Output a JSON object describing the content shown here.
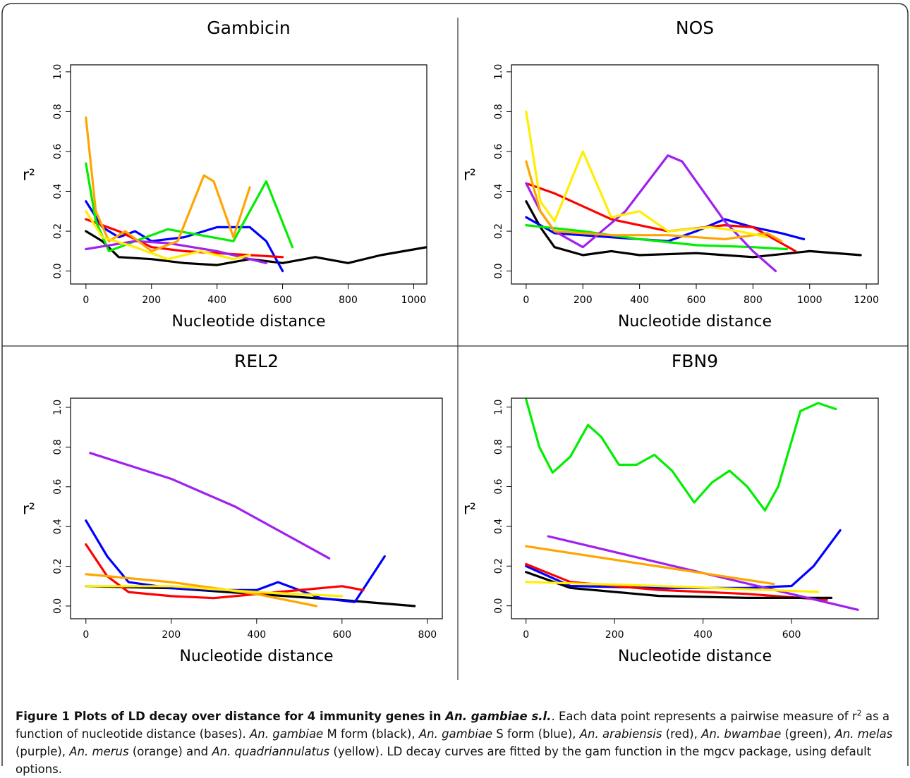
{
  "chart_data": [
    {
      "type": "line",
      "title": "Gambicin",
      "x_label": "Nucleotide distance",
      "y_label": "r²",
      "xlim": [
        -47,
        1040
      ],
      "ylim": [
        -0.065,
        1.035
      ],
      "xticks": [
        0,
        200,
        400,
        600,
        800,
        1000
      ],
      "yticks": [
        {
          "value": 0,
          "label": "0.0"
        },
        {
          "value": 0.2,
          "label": "0.2"
        },
        {
          "value": 0.4,
          "label": "0.4"
        },
        {
          "value": 0.6,
          "label": "0.6"
        },
        {
          "value": 0.8,
          "label": "0.8"
        },
        {
          "value": 1,
          "label": "1.0"
        }
      ],
      "series": [
        {
          "color": "#000000",
          "x": [
            0,
            50,
            100,
            200,
            300,
            400,
            500,
            600,
            700,
            800,
            900,
            1040
          ],
          "values": [
            0.2,
            0.15,
            0.07,
            0.06,
            0.04,
            0.03,
            0.06,
            0.04,
            0.07,
            0.04,
            0.08,
            0.12
          ]
        },
        {
          "color": "#0000ff",
          "x": [
            0,
            50,
            100,
            150,
            200,
            300,
            400,
            500,
            550,
            600
          ],
          "values": [
            0.35,
            0.22,
            0.17,
            0.2,
            0.15,
            0.17,
            0.22,
            0.22,
            0.15,
            0.0
          ]
        },
        {
          "color": "#ff0000",
          "x": [
            0,
            100,
            200,
            300,
            400,
            500,
            600
          ],
          "values": [
            0.26,
            0.2,
            0.12,
            0.1,
            0.09,
            0.08,
            0.07
          ]
        },
        {
          "color": "#00ee00",
          "x": [
            0,
            30,
            70,
            150,
            250,
            350,
            450,
            500,
            550,
            630
          ],
          "values": [
            0.54,
            0.25,
            0.1,
            0.15,
            0.21,
            0.18,
            0.15,
            0.3,
            0.45,
            0.12
          ]
        },
        {
          "color": "#a020f0",
          "x": [
            0,
            150,
            250,
            400,
            550
          ],
          "values": [
            0.11,
            0.15,
            0.14,
            0.1,
            0.04
          ]
        },
        {
          "color": "#ffa500",
          "x": [
            0,
            30,
            70,
            120,
            200,
            280,
            360,
            390,
            450,
            500
          ],
          "values": [
            0.77,
            0.3,
            0.15,
            0.2,
            0.1,
            0.15,
            0.48,
            0.45,
            0.17,
            0.42
          ]
        },
        {
          "color": "#ffee00",
          "x": [
            0,
            50,
            150,
            250,
            350,
            450,
            500
          ],
          "values": [
            0.3,
            0.17,
            0.12,
            0.06,
            0.1,
            0.06,
            0.08
          ]
        }
      ]
    },
    {
      "type": "line",
      "title": "NOS",
      "x_label": "Nucleotide distance",
      "y_label": "r²",
      "xlim": [
        -52,
        1242
      ],
      "ylim": [
        -0.065,
        1.035
      ],
      "xticks": [
        0,
        200,
        400,
        600,
        800,
        1000,
        1200
      ],
      "yticks": [
        {
          "value": 0,
          "label": "0.0"
        },
        {
          "value": 0.2,
          "label": "0.2"
        },
        {
          "value": 0.4,
          "label": "0.4"
        },
        {
          "value": 0.6,
          "label": "0.6"
        },
        {
          "value": 0.8,
          "label": "0.8"
        },
        {
          "value": 1,
          "label": "1.0"
        }
      ],
      "series": [
        {
          "color": "#000000",
          "x": [
            0,
            50,
            100,
            200,
            300,
            400,
            600,
            800,
            1000,
            1180
          ],
          "values": [
            0.35,
            0.22,
            0.12,
            0.08,
            0.1,
            0.08,
            0.09,
            0.07,
            0.1,
            0.08
          ]
        },
        {
          "color": "#0000ff",
          "x": [
            0,
            100,
            300,
            500,
            600,
            700,
            800,
            900,
            980
          ],
          "values": [
            0.27,
            0.19,
            0.17,
            0.15,
            0.2,
            0.26,
            0.22,
            0.19,
            0.16
          ]
        },
        {
          "color": "#ff0000",
          "x": [
            0,
            100,
            300,
            500,
            700,
            800,
            950
          ],
          "values": [
            0.44,
            0.39,
            0.26,
            0.2,
            0.23,
            0.22,
            0.1
          ]
        },
        {
          "color": "#00ee00",
          "x": [
            0,
            200,
            400,
            600,
            800,
            920
          ],
          "values": [
            0.23,
            0.2,
            0.16,
            0.13,
            0.12,
            0.11
          ]
        },
        {
          "color": "#a020f0",
          "x": [
            0,
            50,
            100,
            200,
            350,
            500,
            550,
            700,
            800,
            880
          ],
          "values": [
            0.44,
            0.3,
            0.2,
            0.12,
            0.3,
            0.58,
            0.55,
            0.25,
            0.1,
            0.0
          ]
        },
        {
          "color": "#ffa500",
          "x": [
            0,
            50,
            100,
            300,
            500,
            700,
            850,
            900
          ],
          "values": [
            0.55,
            0.3,
            0.2,
            0.18,
            0.18,
            0.16,
            0.19,
            0.15
          ]
        },
        {
          "color": "#ffee00",
          "x": [
            0,
            50,
            100,
            200,
            300,
            400,
            500,
            650,
            750,
            850
          ],
          "values": [
            0.8,
            0.35,
            0.25,
            0.6,
            0.27,
            0.3,
            0.2,
            0.22,
            0.2,
            0.17
          ]
        }
      ]
    },
    {
      "type": "line",
      "title": "REL2",
      "x_label": "Nucleotide distance",
      "y_label": "r²",
      "xlim": [
        -36,
        835
      ],
      "ylim": [
        -0.064,
        1.046
      ],
      "xticks": [
        0,
        200,
        400,
        600,
        800
      ],
      "yticks": [
        {
          "value": 0,
          "label": "0.0"
        },
        {
          "value": 0.2,
          "label": "0.2"
        },
        {
          "value": 0.4,
          "label": "0.4"
        },
        {
          "value": 0.6,
          "label": "0.6"
        },
        {
          "value": 0.8,
          "label": "0.8"
        },
        {
          "value": 1,
          "label": "1.0"
        }
      ],
      "series": [
        {
          "color": "#000000",
          "x": [
            0,
            200,
            400,
            600,
            770
          ],
          "values": [
            0.1,
            0.09,
            0.06,
            0.03,
            0.0
          ]
        },
        {
          "color": "#0000ff",
          "x": [
            0,
            50,
            100,
            200,
            300,
            400,
            450,
            500,
            550,
            630,
            700
          ],
          "values": [
            0.43,
            0.25,
            0.12,
            0.09,
            0.08,
            0.08,
            0.12,
            0.08,
            0.04,
            0.02,
            0.25
          ]
        },
        {
          "color": "#ff0000",
          "x": [
            0,
            50,
            100,
            200,
            300,
            400,
            500,
            600,
            650
          ],
          "values": [
            0.31,
            0.15,
            0.07,
            0.05,
            0.04,
            0.06,
            0.08,
            0.1,
            0.08
          ]
        },
        {
          "color": "#a020f0",
          "x": [
            10,
            200,
            350,
            570
          ],
          "values": [
            0.77,
            0.64,
            0.5,
            0.24
          ]
        },
        {
          "color": "#ffa500",
          "x": [
            0,
            200,
            400,
            540
          ],
          "values": [
            0.16,
            0.12,
            0.06,
            0.0
          ]
        },
        {
          "color": "#ffee00",
          "x": [
            0,
            200,
            400,
            600
          ],
          "values": [
            0.1,
            0.1,
            0.07,
            0.05
          ]
        }
      ]
    },
    {
      "type": "line",
      "title": "FBN9",
      "x_label": "Nucleotide distance",
      "y_label": "r²",
      "xlim": [
        -33,
        796
      ],
      "ylim": [
        -0.065,
        1.045
      ],
      "xticks": [
        0,
        200,
        400,
        600
      ],
      "yticks": [
        {
          "value": 0,
          "label": "0.0"
        },
        {
          "value": 0.2,
          "label": "0.2"
        },
        {
          "value": 0.4,
          "label": "0.4"
        },
        {
          "value": 0.6,
          "label": "0.6"
        },
        {
          "value": 0.8,
          "label": "0.8"
        },
        {
          "value": 1,
          "label": "1.0"
        }
      ],
      "series": [
        {
          "color": "#00ee00",
          "x": [
            0,
            30,
            60,
            100,
            140,
            170,
            210,
            250,
            290,
            330,
            380,
            420,
            460,
            500,
            540,
            570,
            620,
            660,
            700
          ],
          "values": [
            1.04,
            0.8,
            0.67,
            0.75,
            0.91,
            0.85,
            0.71,
            0.71,
            0.76,
            0.68,
            0.52,
            0.62,
            0.68,
            0.6,
            0.48,
            0.6,
            0.98,
            1.02,
            0.99
          ]
        },
        {
          "color": "#0000ff",
          "x": [
            0,
            100,
            300,
            500,
            600,
            650,
            710
          ],
          "values": [
            0.2,
            0.1,
            0.09,
            0.09,
            0.1,
            0.2,
            0.38
          ]
        },
        {
          "color": "#ff0000",
          "x": [
            0,
            100,
            300,
            500,
            680
          ],
          "values": [
            0.21,
            0.12,
            0.08,
            0.06,
            0.03
          ]
        },
        {
          "color": "#000000",
          "x": [
            0,
            100,
            300,
            500,
            690
          ],
          "values": [
            0.17,
            0.09,
            0.05,
            0.04,
            0.04
          ]
        },
        {
          "color": "#a020f0",
          "x": [
            50,
            750
          ],
          "values": [
            0.35,
            -0.02
          ]
        },
        {
          "color": "#ffa500",
          "x": [
            0,
            560
          ],
          "values": [
            0.3,
            0.11
          ]
        },
        {
          "color": "#ffee00",
          "x": [
            0,
            300,
            660
          ],
          "values": [
            0.12,
            0.1,
            0.07
          ]
        }
      ]
    }
  ],
  "caption": {
    "runs": [
      {
        "text": "Figure 1 Plots of LD decay over distance for 4 immunity genes in ",
        "style": "bold"
      },
      {
        "text": "An. gambiae s.l.",
        "style": "bolditalic"
      },
      {
        "text": ". Each data point represents a pairwise measure of r",
        "style": "normal"
      },
      {
        "text": "2",
        "style": "sup"
      },
      {
        "text": " as a function of nucleotide distance (bases). ",
        "style": "normal"
      },
      {
        "text": "An. gambiae",
        "style": "italic"
      },
      {
        "text": " M form (black), ",
        "style": "normal"
      },
      {
        "text": "An. gambiae",
        "style": "italic"
      },
      {
        "text": " S form (blue), ",
        "style": "normal"
      },
      {
        "text": "An. arabiensis",
        "style": "italic"
      },
      {
        "text": " (red), ",
        "style": "normal"
      },
      {
        "text": "An. bwambae",
        "style": "italic"
      },
      {
        "text": " (green), ",
        "style": "normal"
      },
      {
        "text": "An. melas",
        "style": "italic"
      },
      {
        "text": " (purple), ",
        "style": "normal"
      },
      {
        "text": "An. merus",
        "style": "italic"
      },
      {
        "text": " (orange) and ",
        "style": "normal"
      },
      {
        "text": "An. quadriannulatus",
        "style": "italic"
      },
      {
        "text": " (yellow). LD decay curves are fitted by the gam function in the mgcv package, using default options.",
        "style": "normal"
      }
    ]
  }
}
